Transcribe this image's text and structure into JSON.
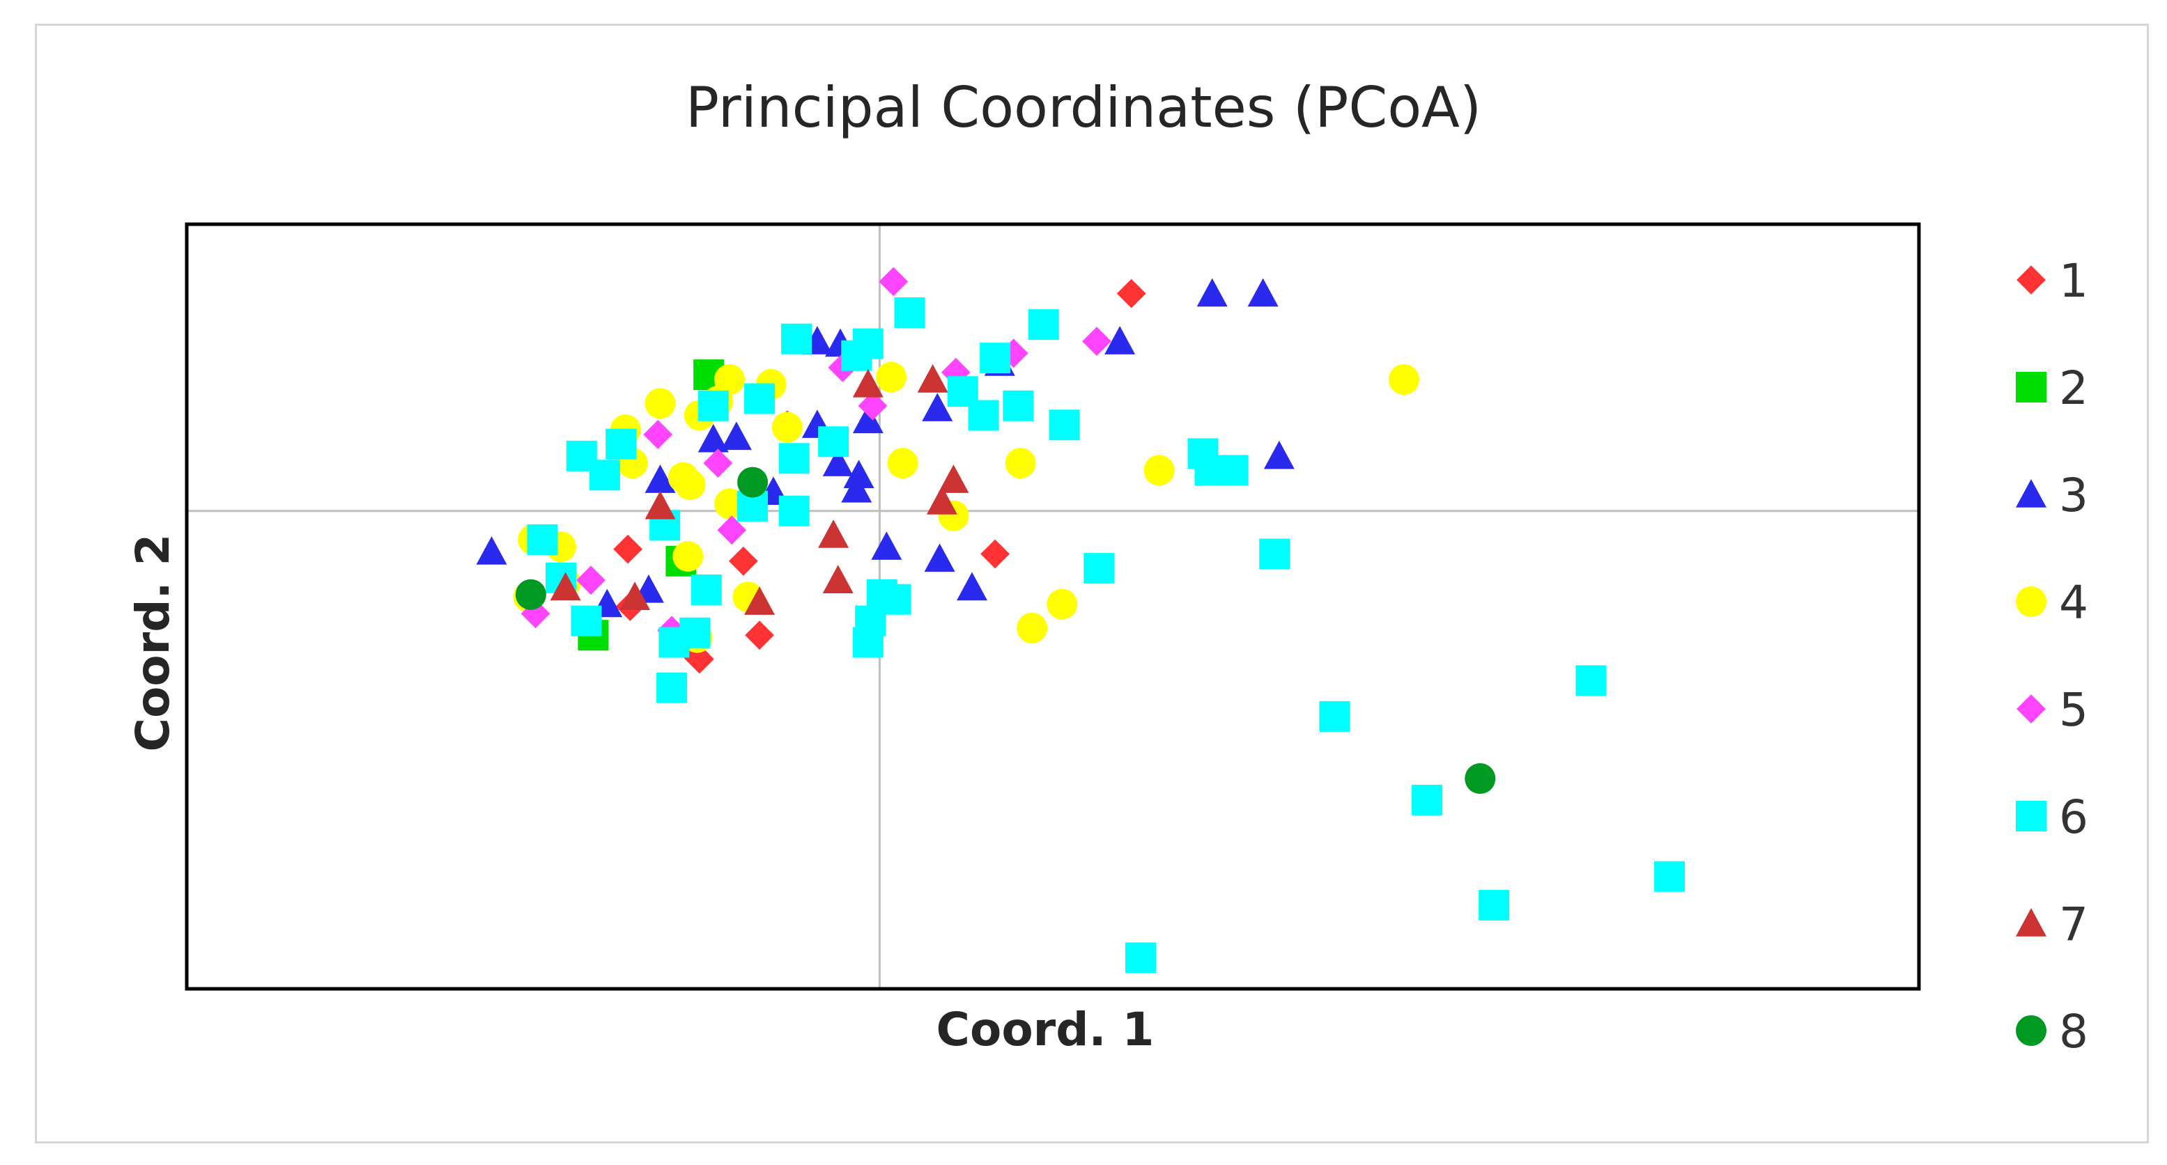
{
  "chart_data": {
    "type": "scatter",
    "title": "Principal Coordinates (PCoA)",
    "xlabel": "Coord. 1",
    "ylabel": "Coord. 2",
    "xlim": [
      -0.3,
      0.45
    ],
    "ylim": [
      -0.2,
      0.12
    ],
    "grid": false,
    "zero_lines": true,
    "legend_position": "right",
    "series": [
      {
        "name": "1",
        "color": "#ff3333",
        "marker": "diamond",
        "points": [
          [
            0.109,
            0.091
          ],
          [
            -0.109,
            -0.016
          ],
          [
            -0.059,
            -0.021
          ],
          [
            -0.078,
            -0.062
          ],
          [
            -0.08,
            -0.06
          ],
          [
            -0.052,
            -0.052
          ],
          [
            0.05,
            -0.018
          ],
          [
            -0.04,
            0.036
          ],
          [
            -0.108,
            -0.04
          ]
        ]
      },
      {
        "name": "2",
        "color": "#00dd00",
        "marker": "square",
        "points": [
          [
            -0.074,
            0.057
          ],
          [
            -0.086,
            -0.021
          ],
          [
            -0.124,
            -0.052
          ]
        ]
      },
      {
        "name": "3",
        "color": "#2a2aee",
        "marker": "triangle",
        "points": [
          [
            -0.168,
            -0.017
          ],
          [
            -0.095,
            0.013
          ],
          [
            -0.1,
            -0.033
          ],
          [
            -0.072,
            0.03
          ],
          [
            -0.062,
            0.031
          ],
          [
            -0.027,
            0.036
          ],
          [
            -0.018,
            0.02
          ],
          [
            -0.01,
            0.009
          ],
          [
            -0.009,
            0.015
          ],
          [
            -0.027,
            0.071
          ],
          [
            -0.017,
            0.07
          ],
          [
            0.003,
            -0.015
          ],
          [
            0.025,
            0.043
          ],
          [
            0.026,
            -0.02
          ],
          [
            0.04,
            -0.032
          ],
          [
            0.052,
            0.062
          ],
          [
            0.104,
            0.071
          ],
          [
            0.144,
            0.091
          ],
          [
            0.166,
            0.091
          ],
          [
            0.173,
            0.023
          ],
          [
            -0.118,
            -0.039
          ],
          [
            -0.046,
            0.008
          ],
          [
            -0.005,
            0.038
          ]
        ]
      },
      {
        "name": "4",
        "color": "#ffff00",
        "marker": "circle",
        "points": [
          [
            -0.15,
            -0.012
          ],
          [
            -0.138,
            -0.015
          ],
          [
            -0.152,
            -0.036
          ],
          [
            -0.136,
            -0.03
          ],
          [
            -0.11,
            0.034
          ],
          [
            -0.107,
            0.02
          ],
          [
            -0.085,
            0.014
          ],
          [
            -0.082,
            0.011
          ],
          [
            -0.078,
            0.04
          ],
          [
            -0.07,
            0.046
          ],
          [
            -0.065,
            0.055
          ],
          [
            -0.047,
            0.053
          ],
          [
            -0.04,
            0.035
          ],
          [
            -0.057,
            -0.036
          ],
          [
            -0.079,
            -0.053
          ],
          [
            -0.083,
            -0.019
          ],
          [
            0.005,
            0.056
          ],
          [
            0.01,
            0.02
          ],
          [
            0.032,
            -0.002
          ],
          [
            0.061,
            0.02
          ],
          [
            0.066,
            -0.049
          ],
          [
            0.079,
            -0.039
          ],
          [
            0.121,
            0.017
          ],
          [
            0.227,
            0.055
          ],
          [
            -0.095,
            0.045
          ],
          [
            -0.065,
            0.003
          ]
        ]
      },
      {
        "name": "5",
        "color": "#ff44ff",
        "marker": "diamond",
        "points": [
          [
            0.006,
            0.096
          ],
          [
            -0.016,
            0.06
          ],
          [
            0.033,
            0.058
          ],
          [
            0.058,
            0.066
          ],
          [
            0.094,
            0.071
          ],
          [
            -0.096,
            0.032
          ],
          [
            -0.07,
            0.02
          ],
          [
            -0.064,
            -0.008
          ],
          [
            -0.125,
            -0.029
          ],
          [
            -0.149,
            -0.043
          ],
          [
            -0.09,
            -0.05
          ],
          [
            -0.003,
            0.044
          ]
        ]
      },
      {
        "name": "6",
        "color": "#00ffff",
        "marker": "square",
        "points": [
          [
            -0.146,
            -0.012
          ],
          [
            -0.138,
            -0.028
          ],
          [
            -0.127,
            -0.046
          ],
          [
            -0.129,
            0.023
          ],
          [
            -0.119,
            0.015
          ],
          [
            -0.112,
            0.028
          ],
          [
            -0.093,
            -0.006
          ],
          [
            -0.089,
            -0.055
          ],
          [
            -0.08,
            -0.051
          ],
          [
            -0.075,
            -0.033
          ],
          [
            -0.072,
            0.044
          ],
          [
            -0.055,
            0.002
          ],
          [
            -0.052,
            0.047
          ],
          [
            -0.036,
            0.072
          ],
          [
            -0.037,
            0.022
          ],
          [
            -0.037,
            0.0
          ],
          [
            -0.02,
            0.029
          ],
          [
            -0.01,
            0.065
          ],
          [
            -0.005,
            0.07
          ],
          [
            0.013,
            0.083
          ],
          [
            0.036,
            0.05
          ],
          [
            0.045,
            0.04
          ],
          [
            0.05,
            0.064
          ],
          [
            0.06,
            0.044
          ],
          [
            0.08,
            0.036
          ],
          [
            0.071,
            0.078
          ],
          [
            0.143,
            0.017
          ],
          [
            0.153,
            0.017
          ],
          [
            0.14,
            0.024
          ],
          [
            0.171,
            -0.018
          ],
          [
            0.197,
            -0.086
          ],
          [
            0.237,
            -0.121
          ],
          [
            0.266,
            -0.165
          ],
          [
            0.113,
            -0.187
          ],
          [
            0.095,
            -0.024
          ],
          [
            0.342,
            -0.153
          ],
          [
            0.308,
            -0.071
          ],
          [
            -0.004,
            -0.046
          ],
          [
            0.001,
            -0.035
          ],
          [
            0.007,
            -0.037
          ],
          [
            -0.005,
            -0.055
          ],
          [
            -0.09,
            -0.074
          ]
        ]
      },
      {
        "name": "7",
        "color": "#cc3333",
        "marker": "triangle",
        "points": [
          [
            -0.095,
            0.002
          ],
          [
            -0.136,
            -0.032
          ],
          [
            -0.106,
            -0.036
          ],
          [
            -0.052,
            -0.038
          ],
          [
            -0.02,
            -0.01
          ],
          [
            -0.018,
            -0.029
          ],
          [
            -0.005,
            0.053
          ],
          [
            0.023,
            0.055
          ],
          [
            0.032,
            0.013
          ],
          [
            0.027,
            0.004
          ]
        ]
      },
      {
        "name": "8",
        "color": "#009922",
        "marker": "circle",
        "points": [
          [
            -0.151,
            -0.035
          ],
          [
            -0.055,
            0.012
          ],
          [
            0.26,
            -0.112
          ]
        ]
      }
    ]
  }
}
